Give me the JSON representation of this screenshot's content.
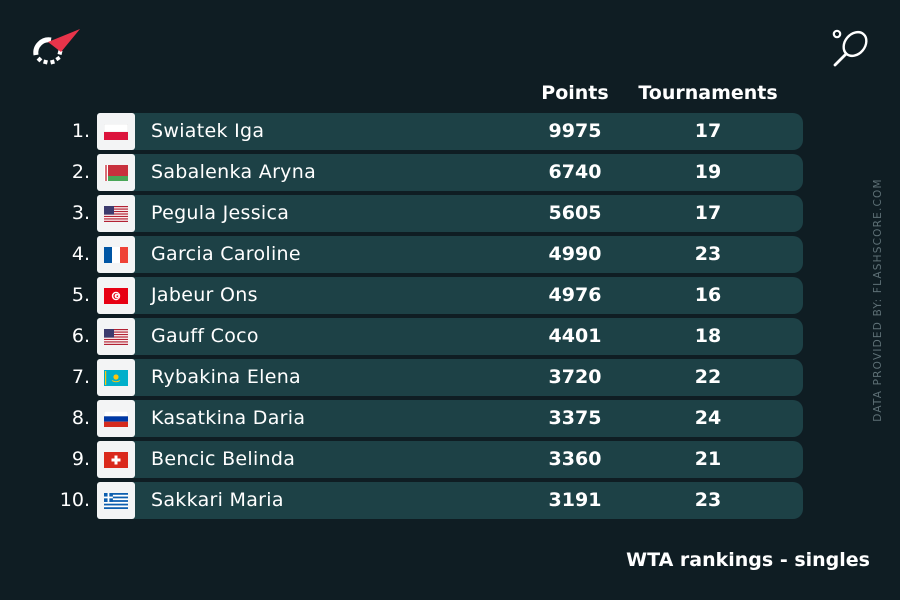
{
  "header": {
    "points_label": "Points",
    "tournaments_label": "Tournaments"
  },
  "credit": "DATA PROVIDED BY: FLASHSCORE.COM",
  "footer": "WTA rankings - singles",
  "colors": {
    "background": "#0f1d23",
    "row": "#1d4146",
    "accent": "#e8344a"
  },
  "rows": [
    {
      "rank": "1.",
      "name": "Swiatek Iga",
      "points": "9975",
      "tournaments": "17",
      "flag": "pl"
    },
    {
      "rank": "2.",
      "name": "Sabalenka Aryna",
      "points": "6740",
      "tournaments": "19",
      "flag": "by"
    },
    {
      "rank": "3.",
      "name": "Pegula Jessica",
      "points": "5605",
      "tournaments": "17",
      "flag": "us"
    },
    {
      "rank": "4.",
      "name": "Garcia Caroline",
      "points": "4990",
      "tournaments": "23",
      "flag": "fr"
    },
    {
      "rank": "5.",
      "name": "Jabeur Ons",
      "points": "4976",
      "tournaments": "16",
      "flag": "tn"
    },
    {
      "rank": "6.",
      "name": "Gauff Coco",
      "points": "4401",
      "tournaments": "18",
      "flag": "us"
    },
    {
      "rank": "7.",
      "name": "Rybakina Elena",
      "points": "3720",
      "tournaments": "22",
      "flag": "kz"
    },
    {
      "rank": "8.",
      "name": "Kasatkina Daria",
      "points": "3375",
      "tournaments": "24",
      "flag": "ru"
    },
    {
      "rank": "9.",
      "name": "Bencic Belinda",
      "points": "3360",
      "tournaments": "21",
      "flag": "ch"
    },
    {
      "rank": "10.",
      "name": "Sakkari Maria",
      "points": "3191",
      "tournaments": "23",
      "flag": "gr"
    }
  ]
}
